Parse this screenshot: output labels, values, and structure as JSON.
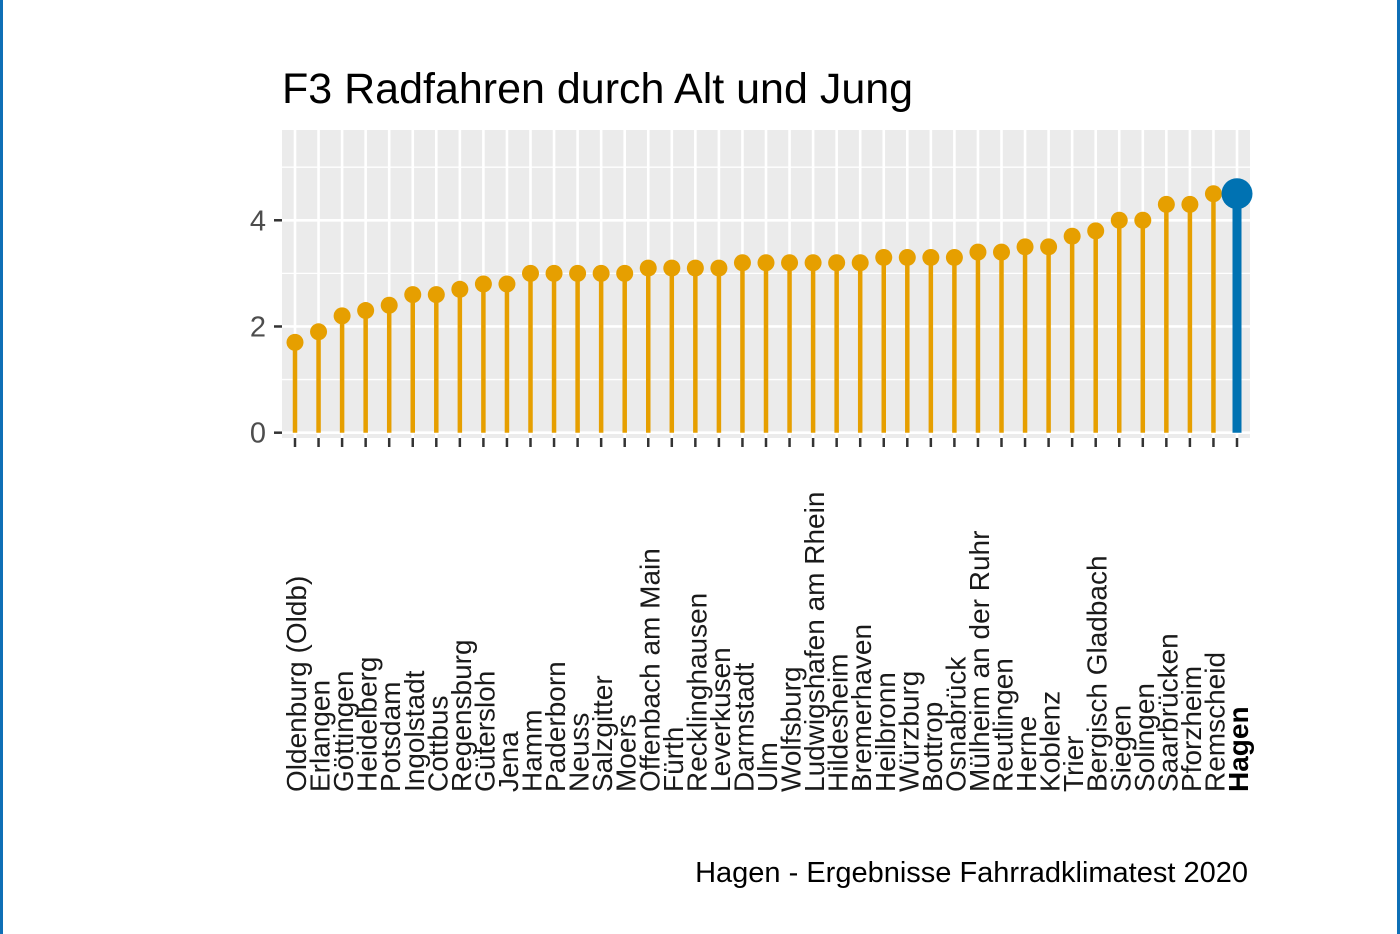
{
  "chart_data": {
    "type": "lollipop",
    "title": "F3 Radfahren durch Alt und Jung",
    "caption": "Hagen - Ergebnisse Fahrradklimatest 2020",
    "xlabel": "",
    "ylabel": "",
    "ylim": [
      -0.1,
      5.7
    ],
    "yticks": [
      0,
      2,
      4
    ],
    "grid": true,
    "highlight": "Hagen",
    "colors": {
      "default": "#E69F00",
      "highlight": "#0072B2",
      "panel": "#EBEBEB",
      "grid": "#FFFFFF",
      "frame": "#0F6FB6"
    },
    "categories": [
      "Oldenburg (Oldb)",
      "Erlangen",
      "Göttingen",
      "Heidelberg",
      "Potsdam",
      "Ingolstadt",
      "Cottbus",
      "Regensburg",
      "Gütersloh",
      "Jena",
      "Hamm",
      "Paderborn",
      "Neuss",
      "Salzgitter",
      "Moers",
      "Offenbach am Main",
      "Fürth",
      "Recklinghausen",
      "Leverkusen",
      "Darmstadt",
      "Ulm",
      "Wolfsburg",
      "Ludwigshafen am Rhein",
      "Hildesheim",
      "Bremerhaven",
      "Heilbronn",
      "Würzburg",
      "Bottrop",
      "Osnabrück",
      "Mülheim an der Ruhr",
      "Reutlingen",
      "Herne",
      "Koblenz",
      "Trier",
      "Bergisch Gladbach",
      "Siegen",
      "Solingen",
      "Saarbrücken",
      "Pforzheim",
      "Remscheid",
      "Hagen"
    ],
    "values": [
      1.7,
      1.9,
      2.2,
      2.3,
      2.4,
      2.6,
      2.6,
      2.7,
      2.8,
      2.8,
      3.0,
      3.0,
      3.0,
      3.0,
      3.0,
      3.1,
      3.1,
      3.1,
      3.1,
      3.2,
      3.2,
      3.2,
      3.2,
      3.2,
      3.2,
      3.3,
      3.3,
      3.3,
      3.3,
      3.4,
      3.4,
      3.5,
      3.5,
      3.7,
      3.8,
      4.0,
      4.0,
      4.3,
      4.3,
      4.5,
      4.5
    ]
  }
}
